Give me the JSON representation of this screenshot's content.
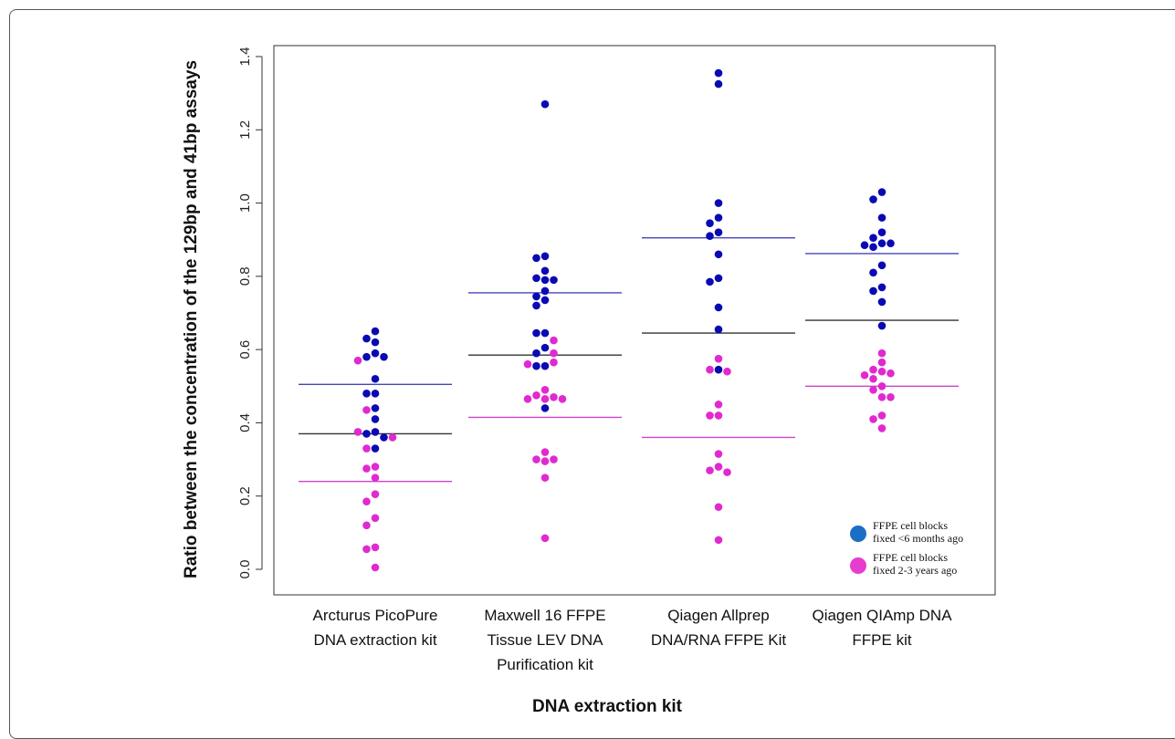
{
  "chart_data": {
    "type": "scatter",
    "title": "",
    "xlabel": "DNA extraction kit",
    "ylabel": "Ratio between the concentration of the 129bp and 41bp assays",
    "ylim": [
      0.0,
      1.4
    ],
    "yticks": [
      "0.0",
      "0.2",
      "0.4",
      "0.6",
      "0.8",
      "1.0",
      "1.2",
      "1.4"
    ],
    "categories": [
      [
        "Arcturus PicoPure",
        "DNA extraction kit"
      ],
      [
        "Maxwell 16 FFPE",
        "Tissue LEV DNA",
        "Purification kit"
      ],
      [
        "Qiagen Allprep",
        "DNA/RNA FFPE Kit"
      ],
      [
        "Qiagen QIAmp DNA",
        "FFPE kit"
      ]
    ],
    "grid": false,
    "legend_position": "bottom-right",
    "series": [
      {
        "name": "FFPE cell blocks fixed <6 months ago",
        "legend_lines": [
          "FFPE cell blocks",
          "fixed <6 months ago"
        ],
        "color": "#0a0ab4",
        "legend_color": "#1a6fc4",
        "values": [
          [
            0.65,
            0.63,
            0.62,
            0.59,
            0.58,
            0.58,
            0.52,
            0.48,
            0.48,
            0.44,
            0.41,
            0.375,
            0.37,
            0.36,
            0.33
          ],
          [
            1.27,
            0.855,
            0.85,
            0.815,
            0.795,
            0.79,
            0.79,
            0.76,
            0.745,
            0.735,
            0.72,
            0.645,
            0.645,
            0.605,
            0.59,
            0.555,
            0.555,
            0.44
          ],
          [
            1.355,
            1.325,
            1.0,
            0.96,
            0.945,
            0.92,
            0.91,
            0.86,
            0.795,
            0.785,
            0.715,
            0.655,
            0.545
          ],
          [
            1.03,
            1.01,
            0.96,
            0.92,
            0.905,
            0.89,
            0.89,
            0.885,
            0.88,
            0.83,
            0.81,
            0.77,
            0.76,
            0.73,
            0.665
          ]
        ],
        "mean_line": [
          0.505,
          0.755,
          0.905,
          0.862
        ]
      },
      {
        "name": "FFPE cell blocks fixed 2-3 years ago",
        "legend_lines": [
          "FFPE cell blocks",
          "fixed 2-3 years ago"
        ],
        "color": "#e02ad0",
        "legend_color": "#e63ccf",
        "values": [
          [
            0.57,
            0.435,
            0.375,
            0.36,
            0.33,
            0.28,
            0.275,
            0.25,
            0.205,
            0.185,
            0.14,
            0.12,
            0.06,
            0.055,
            0.005
          ],
          [
            0.625,
            0.59,
            0.565,
            0.56,
            0.49,
            0.475,
            0.47,
            0.465,
            0.465,
            0.465,
            0.32,
            0.3,
            0.3,
            0.295,
            0.25,
            0.085
          ],
          [
            0.575,
            0.545,
            0.54,
            0.45,
            0.42,
            0.42,
            0.315,
            0.28,
            0.27,
            0.265,
            0.17,
            0.08
          ],
          [
            0.59,
            0.565,
            0.545,
            0.54,
            0.535,
            0.53,
            0.52,
            0.5,
            0.49,
            0.47,
            0.47,
            0.42,
            0.41,
            0.385
          ]
        ],
        "mean_line": [
          0.24,
          0.415,
          0.36,
          0.5
        ]
      }
    ],
    "overall_mean_line": [
      0.37,
      0.585,
      0.645,
      0.68
    ]
  }
}
